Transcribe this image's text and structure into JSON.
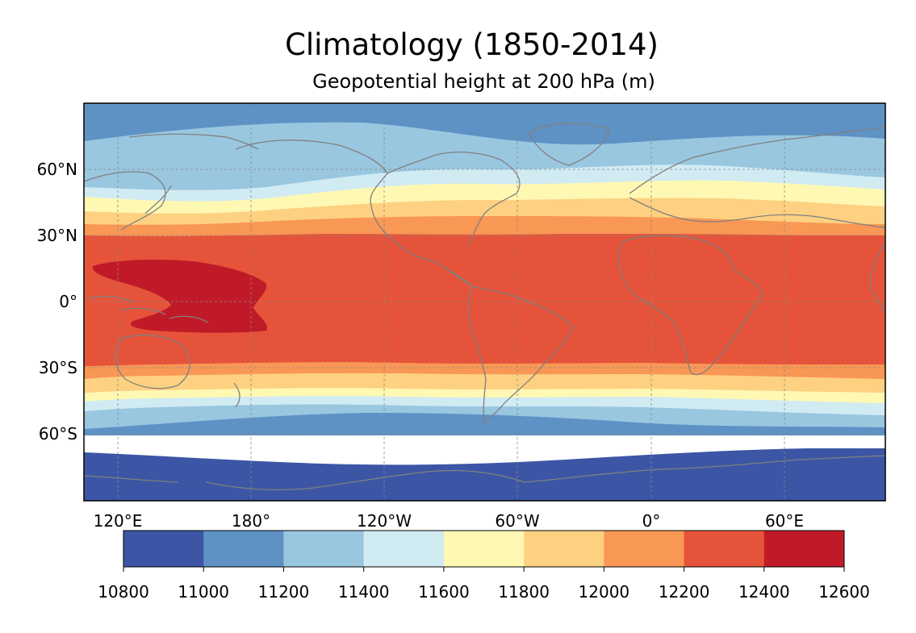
{
  "title": "Climatology (1850-2014)",
  "subtitle": "Geopotential height at 200 hPa (m)",
  "map": {
    "projection": "PlateCarree",
    "central_longitude": 180,
    "lat_ticks": [
      "60°N",
      "30°N",
      "0°",
      "30°S",
      "60°S"
    ],
    "lon_ticks": [
      "120°E",
      "180°",
      "120°W",
      "60°W",
      "0°",
      "60°E"
    ],
    "gridlines": true,
    "coastline_color": "#808080"
  },
  "colorbar": {
    "ticks": [
      "10800",
      "11000",
      "11200",
      "11400",
      "11600",
      "11800",
      "12000",
      "12200",
      "12400",
      "12600"
    ],
    "colors": [
      "#3c56a5",
      "#5e92c5",
      "#99c7e0",
      "#d1ebf3",
      "#fef8b3",
      "#fdd181",
      "#f99755",
      "#e5543a",
      "#c01a28"
    ]
  }
}
